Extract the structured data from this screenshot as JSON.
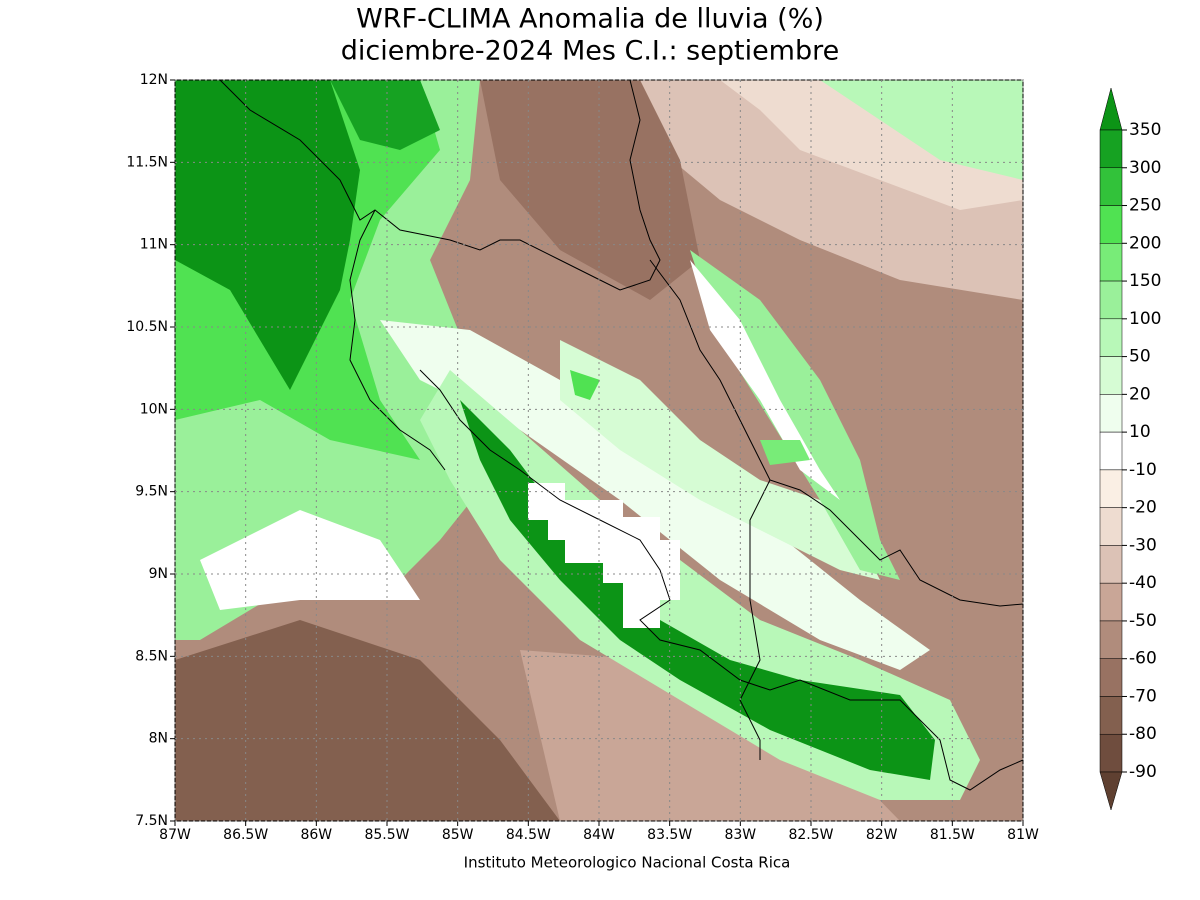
{
  "map": {
    "title": [
      "WRF-CLIMA Anomalia de lluvia (%)",
      "diciembre-2024 Mes C.I.: septiembre"
    ],
    "xlim": [
      -87,
      -81
    ],
    "ylim": [
      7.5,
      12
    ],
    "xticks": [
      {
        "value": -87,
        "label": "87W"
      },
      {
        "value": -86.5,
        "label": "86.5W"
      },
      {
        "value": -86,
        "label": "86W"
      },
      {
        "value": -85.5,
        "label": "85.5W"
      },
      {
        "value": -85,
        "label": "85W"
      },
      {
        "value": -84.5,
        "label": "84.5W"
      },
      {
        "value": -84,
        "label": "84W"
      },
      {
        "value": -83.5,
        "label": "83.5W"
      },
      {
        "value": -83,
        "label": "83W"
      },
      {
        "value": -82.5,
        "label": "82.5W"
      },
      {
        "value": -82,
        "label": "82W"
      },
      {
        "value": -81.5,
        "label": "81.5W"
      },
      {
        "value": -81,
        "label": "81W"
      }
    ],
    "yticks": [
      {
        "value": 7.5,
        "label": "7.5N"
      },
      {
        "value": 8,
        "label": "8N"
      },
      {
        "value": 8.5,
        "label": "8.5N"
      },
      {
        "value": 9,
        "label": "9N"
      },
      {
        "value": 9.5,
        "label": "9.5N"
      },
      {
        "value": 10,
        "label": "10N"
      },
      {
        "value": 10.5,
        "label": "10.5N"
      },
      {
        "value": 11,
        "label": "11N"
      },
      {
        "value": 11.5,
        "label": "11.5N"
      },
      {
        "value": 12,
        "label": "12N"
      }
    ],
    "grid": true,
    "colorbar": {
      "levels": [
        350,
        300,
        250,
        200,
        150,
        100,
        50,
        20,
        10,
        -10,
        -20,
        -30,
        -40,
        -50,
        -60,
        -70,
        -80,
        -90
      ],
      "colors": [
        "#0c9416",
        "#16a222",
        "#32c23a",
        "#50e252",
        "#78ec78",
        "#9af09a",
        "#b8f8b8",
        "#d6fcd4",
        "#effeee",
        "#ffffff",
        "#faefe4",
        "#eedcd0",
        "#dcc2b6",
        "#c9a697",
        "#b08c7c",
        "#987262",
        "#83604f",
        "#6f4d3e",
        "#5f4031"
      ]
    },
    "footer": "Instituto Meteorologico Nacional Costa Rica"
  }
}
